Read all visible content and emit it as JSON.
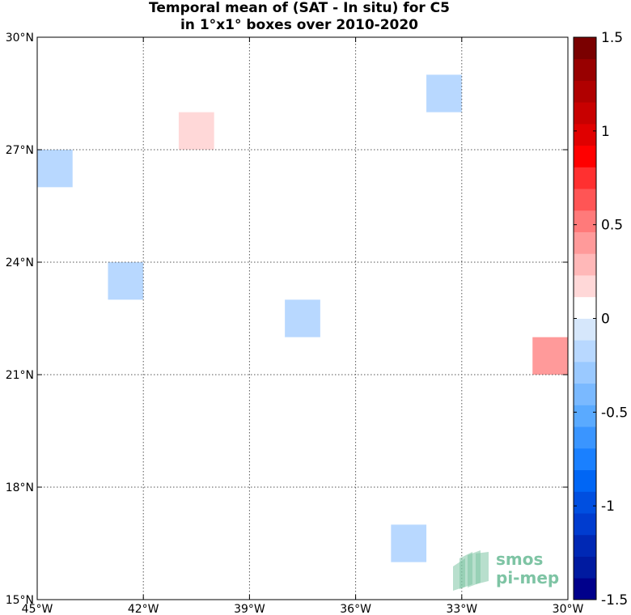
{
  "chart_data": {
    "type": "heatmap",
    "title": [
      "Temporal mean of (SAT - In situ) for C5",
      "in 1°x1° boxes over 2010-2020"
    ],
    "x_ticks": [
      "45°W",
      "42°W",
      "39°W",
      "36°W",
      "33°W",
      "30°W"
    ],
    "y_ticks": [
      "15°N",
      "18°N",
      "21°N",
      "24°N",
      "27°N",
      "30°N"
    ],
    "xlim": [
      -45,
      -30
    ],
    "ylim": [
      15,
      30
    ],
    "grid": true,
    "cells": [
      {
        "lon": -44.5,
        "lat": 26.5,
        "value": -0.12
      },
      {
        "lon": -40.5,
        "lat": 27.5,
        "value": 0.12
      },
      {
        "lon": -33.5,
        "lat": 28.5,
        "value": -0.12
      },
      {
        "lon": -42.5,
        "lat": 23.5,
        "value": -0.12
      },
      {
        "lon": -37.5,
        "lat": 22.5,
        "value": -0.12
      },
      {
        "lon": -30.5,
        "lat": 21.5,
        "value": 0.35
      },
      {
        "lon": -34.5,
        "lat": 16.5,
        "value": -0.12
      }
    ],
    "colorbar": {
      "range": [
        -1.5,
        1.5
      ],
      "ticks": [
        "1.5",
        "1",
        "0.5",
        "0",
        "-0.5",
        "-1",
        "-1.5"
      ],
      "tick_values": [
        1.5,
        1,
        0.5,
        0,
        -0.5,
        -1,
        -1.5
      ],
      "colors": [
        "#00008b",
        "#001aa0",
        "#0028b4",
        "#003ccf",
        "#004fe0",
        "#0066f5",
        "#1a80ff",
        "#3a95ff",
        "#5aaaff",
        "#7ab9ff",
        "#9ac9ff",
        "#b8d8ff",
        "#d6e7fb",
        "#ffffff",
        "#ffd8d8",
        "#ffb8b8",
        "#ff9a9a",
        "#ff7a7a",
        "#ff5555",
        "#ff3030",
        "#ff0000",
        "#e00000",
        "#c80000",
        "#b00000",
        "#980000",
        "#7a0000"
      ]
    },
    "logo": {
      "line1": "smos",
      "line2": "pi-mep",
      "color": "#7ec4a4"
    }
  }
}
